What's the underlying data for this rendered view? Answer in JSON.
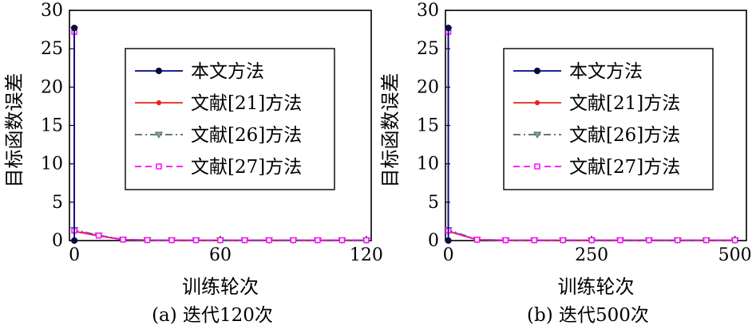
{
  "chart_data": [
    {
      "type": "line",
      "caption": "(a) 迭代120次",
      "xlabel": "训练轮次",
      "ylabel": "目标函数误差",
      "xlim": [
        -2,
        122
      ],
      "ylim": [
        0,
        30
      ],
      "xticks": [
        0,
        60,
        120
      ],
      "xtick_labels": [
        "0",
        "60",
        "120"
      ],
      "yticks": [
        0,
        5,
        10,
        15,
        20,
        25,
        30
      ],
      "ytick_labels": [
        "0",
        "5",
        "10",
        "15",
        "20",
        "25",
        "30"
      ],
      "grid": false,
      "legend_position": "upper-right",
      "series": [
        {
          "name": "本文方法",
          "color": "#00008b",
          "marker": "circle",
          "dash": "solid",
          "x": [
            0,
            0
          ],
          "y": [
            27.7,
            0
          ]
        },
        {
          "name": "文献[21]方法",
          "color": "#e8231e",
          "marker": "dot",
          "dash": "solid",
          "x": [
            0,
            0,
            10,
            20,
            30,
            40,
            50,
            60,
            70,
            80,
            90,
            100,
            110,
            120
          ],
          "y": [
            27.5,
            1.2,
            0.6,
            0.12,
            0.06,
            0.05,
            0.05,
            0.05,
            0.05,
            0.05,
            0.05,
            0.05,
            0.05,
            0.05
          ]
        },
        {
          "name": "文献[26]方法",
          "color": "#4a6a64",
          "marker": "triangle-down",
          "dash": "dashdot",
          "x": [
            0,
            0,
            10,
            20,
            30,
            40,
            50,
            60,
            70,
            80,
            90,
            100,
            110,
            120
          ],
          "y": [
            27.5,
            1.4,
            0.7,
            0.15,
            0.07,
            0.05,
            0.05,
            0.05,
            0.05,
            0.05,
            0.05,
            0.05,
            0.05,
            0.05
          ]
        },
        {
          "name": "文献[27]方法",
          "color": "#ff00ff",
          "marker": "square-open",
          "dash": "dashed",
          "x": [
            0,
            0,
            10,
            20,
            30,
            40,
            50,
            60,
            70,
            80,
            90,
            100,
            110,
            120
          ],
          "y": [
            27.2,
            1.3,
            0.65,
            0.13,
            0.06,
            0.05,
            0.05,
            0.05,
            0.05,
            0.05,
            0.05,
            0.05,
            0.05,
            0.05
          ]
        }
      ]
    },
    {
      "type": "line",
      "caption": "(b) 迭代500次",
      "xlabel": "训练轮次",
      "ylabel": "目标函数误差",
      "xlim": [
        -5,
        520
      ],
      "ylim": [
        0,
        30
      ],
      "xticks": [
        0,
        250,
        500
      ],
      "xtick_labels": [
        "0",
        "250",
        "500"
      ],
      "yticks": [
        0,
        5,
        10,
        15,
        20,
        25,
        30
      ],
      "ytick_labels": [
        "0",
        "5",
        "10",
        "15",
        "20",
        "25",
        "30"
      ],
      "grid": false,
      "legend_position": "upper-right",
      "series": [
        {
          "name": "本文方法",
          "color": "#00008b",
          "marker": "circle",
          "dash": "solid",
          "x": [
            0,
            0
          ],
          "y": [
            27.7,
            0
          ]
        },
        {
          "name": "文献[21]方法",
          "color": "#e8231e",
          "marker": "dot",
          "dash": "solid",
          "x": [
            0,
            0,
            50,
            100,
            150,
            200,
            250,
            300,
            350,
            400,
            450,
            500
          ],
          "y": [
            27.5,
            1.2,
            0.1,
            0.05,
            0.05,
            0.05,
            0.05,
            0.05,
            0.05,
            0.05,
            0.05,
            0.05
          ]
        },
        {
          "name": "文献[26]方法",
          "color": "#4a6a64",
          "marker": "triangle-down",
          "dash": "dashdot",
          "x": [
            0,
            0,
            50,
            100,
            150,
            200,
            250,
            300,
            350,
            400,
            450,
            500
          ],
          "y": [
            27.5,
            1.4,
            0.12,
            0.05,
            0.05,
            0.05,
            0.05,
            0.05,
            0.05,
            0.05,
            0.05,
            0.05
          ]
        },
        {
          "name": "文献[27]方法",
          "color": "#ff00ff",
          "marker": "square-open",
          "dash": "dashed",
          "x": [
            0,
            0,
            50,
            100,
            150,
            200,
            250,
            300,
            350,
            400,
            450,
            500
          ],
          "y": [
            27.2,
            1.3,
            0.11,
            0.05,
            0.05,
            0.05,
            0.05,
            0.05,
            0.05,
            0.05,
            0.05,
            0.05
          ]
        }
      ]
    }
  ]
}
